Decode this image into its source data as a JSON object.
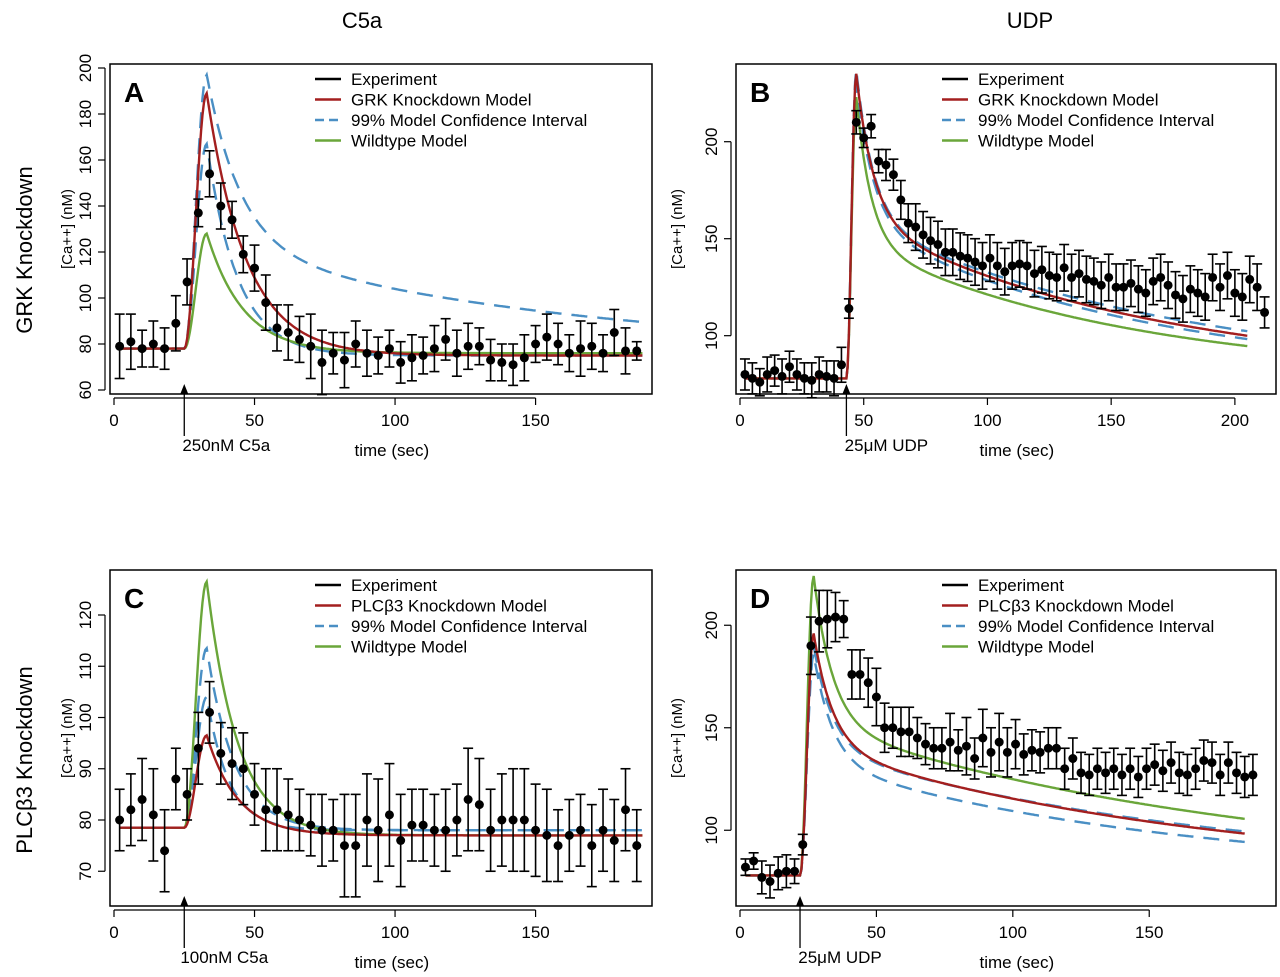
{
  "columns": [
    "C5a",
    "UDP"
  ],
  "rows": [
    "GRK Knockdown",
    "PLCβ3 Knockdown"
  ],
  "colors": {
    "experiment": "#000000",
    "knockdown": "#a31f1f",
    "ci": "#4a8fc4",
    "wildtype": "#6aa63a"
  },
  "chart_data": [
    {
      "type": "line",
      "panel": "A",
      "xlabel": "time (sec)",
      "ylabel": "[Ca++] (nM)",
      "xlim": [
        0,
        190
      ],
      "ylim": [
        60,
        200
      ],
      "xticks": [
        "0",
        "50",
        "100",
        "150"
      ],
      "yticks": [
        "60",
        "80",
        "100",
        "120",
        "140",
        "160",
        "180",
        "200"
      ],
      "stimulus": {
        "label": "250nM C5a",
        "time": 25
      },
      "legend": [
        "Experiment",
        "GRK  Knockdown Model",
        "99% Model Confidence Interval",
        "Wildtype Model"
      ],
      "series": [
        {
          "name": "Experiment",
          "x": [
            2,
            6,
            10,
            14,
            18,
            22,
            26,
            30,
            34,
            38,
            42,
            46,
            50,
            54,
            58,
            62,
            66,
            70,
            74,
            78,
            82,
            86,
            90,
            94,
            98,
            102,
            106,
            110,
            114,
            118,
            122,
            126,
            130,
            134,
            138,
            142,
            146,
            150,
            154,
            158,
            162,
            166,
            170,
            174,
            178,
            182,
            186
          ],
          "y": [
            79,
            81,
            78,
            80,
            78,
            89,
            107,
            137,
            154,
            140,
            134,
            119,
            113,
            98,
            87,
            85,
            82,
            79,
            72,
            76,
            73,
            80,
            76,
            75,
            78,
            72,
            74,
            75,
            78,
            82,
            76,
            79,
            79,
            73,
            72,
            71,
            74,
            80,
            83,
            80,
            76,
            78,
            79,
            76,
            85,
            77,
            77
          ],
          "err": [
            14,
            12,
            8,
            10,
            9,
            12,
            10,
            6,
            10,
            10,
            8,
            8,
            10,
            12,
            10,
            12,
            10,
            14,
            14,
            9,
            12,
            10,
            10,
            8,
            8,
            9,
            10,
            8,
            10,
            9,
            10,
            10,
            8,
            9,
            8,
            9,
            10,
            8,
            10,
            9,
            8,
            12,
            10,
            8,
            10,
            10,
            4
          ]
        },
        {
          "name": "GRK  Knockdown Model",
          "baseline": 78,
          "peak": 189,
          "onset": 25,
          "rise": 8,
          "tau": 14,
          "offset": 75,
          "tail": 0
        },
        {
          "name": "99% upper",
          "baseline": 78,
          "peak": 197,
          "onset": 25,
          "rise": 8,
          "tau": 12,
          "offset": 75,
          "tail": 48
        },
        {
          "name": "99% lower",
          "baseline": 78,
          "peak": 167,
          "onset": 25,
          "rise": 8,
          "tau": 11,
          "offset": 75,
          "tail": 0
        },
        {
          "name": "Wildtype Model",
          "baseline": 78,
          "peak": 128,
          "onset": 25,
          "rise": 8,
          "tau": 13,
          "offset": 76,
          "tail": 0
        }
      ]
    },
    {
      "type": "line",
      "panel": "B",
      "xlabel": "time (sec)",
      "ylabel": "[Ca++] (nM)",
      "xlim": [
        0,
        215
      ],
      "ylim": [
        72,
        238
      ],
      "xticks": [
        "0",
        "50",
        "100",
        "150",
        "200"
      ],
      "yticks": [
        "100",
        "150",
        "200"
      ],
      "stimulus": {
        "label": "25μM UDP",
        "time": 43
      },
      "legend": [
        "Experiment",
        "GRK Knockdown Model",
        "99% Model Confidence Interval",
        "Wildtype Model"
      ],
      "series": [
        {
          "name": "Experiment",
          "x": [
            2,
            5,
            8,
            11,
            14,
            17,
            20,
            23,
            26,
            29,
            32,
            35,
            38,
            41,
            44,
            47,
            50,
            53,
            56,
            59,
            62,
            65,
            68,
            71,
            74,
            77,
            80,
            83,
            86,
            89,
            92,
            95,
            98,
            101,
            104,
            107,
            110,
            113,
            116,
            119,
            122,
            125,
            128,
            131,
            134,
            137,
            140,
            143,
            146,
            149,
            152,
            155,
            158,
            161,
            164,
            167,
            170,
            173,
            176,
            179,
            182,
            185,
            188,
            191,
            194,
            197,
            200,
            203,
            206,
            209,
            212
          ],
          "y": [
            80,
            78,
            76,
            80,
            82,
            79,
            84,
            80,
            78,
            77,
            80,
            79,
            78,
            85,
            114,
            210,
            202,
            208,
            190,
            188,
            183,
            170,
            158,
            156,
            152,
            149,
            147,
            143,
            143,
            141,
            140,
            138,
            136,
            140,
            136,
            133,
            136,
            137,
            136,
            132,
            134,
            131,
            130,
            135,
            130,
            132,
            129,
            128,
            126,
            130,
            125,
            125,
            127,
            124,
            122,
            128,
            130,
            126,
            121,
            119,
            124,
            122,
            120,
            130,
            125,
            131,
            122,
            120,
            129,
            125,
            112
          ],
          "err": [
            8,
            8,
            7,
            9,
            8,
            9,
            8,
            8,
            8,
            9,
            9,
            8,
            9,
            9,
            5,
            6,
            5,
            6,
            6,
            8,
            8,
            10,
            10,
            12,
            12,
            12,
            12,
            12,
            12,
            12,
            12,
            12,
            12,
            12,
            12,
            12,
            12,
            12,
            12,
            12,
            12,
            12,
            12,
            12,
            12,
            12,
            12,
            12,
            12,
            12,
            12,
            12,
            12,
            12,
            12,
            12,
            12,
            12,
            12,
            12,
            12,
            12,
            12,
            12,
            12,
            12,
            12,
            12,
            12,
            12,
            8
          ]
        },
        {
          "name": "GRK Knockdown Model",
          "baseline": 78,
          "peak": 235,
          "onset": 43,
          "rise": 4,
          "fastAmp": 75,
          "tauFast": 7,
          "slowAmp": 82,
          "tauSlow": 120,
          "final": 78
        },
        {
          "name": "99% upper",
          "baseline": 78,
          "peak": 237,
          "onset": 43,
          "rise": 4,
          "fastAmp": 77,
          "tauFast": 7,
          "slowAmp": 82,
          "tauSlow": 130,
          "final": 78
        },
        {
          "name": "99% lower",
          "baseline": 78,
          "peak": 230,
          "onset": 43,
          "rise": 4,
          "fastAmp": 72,
          "tauFast": 7,
          "slowAmp": 80,
          "tauSlow": 115,
          "final": 78
        },
        {
          "name": "Wildtype Model",
          "baseline": 78,
          "peak": 223,
          "onset": 43,
          "rise": 4,
          "fastAmp": 75,
          "tauFast": 6,
          "slowAmp": 70,
          "tauSlow": 110,
          "final": 78
        }
      ]
    },
    {
      "type": "line",
      "panel": "C",
      "xlabel": "time (sec)",
      "ylabel": "[Ca++] (nM)",
      "xlim": [
        0,
        190
      ],
      "ylim": [
        64,
        128
      ],
      "xticks": [
        "0",
        "50",
        "100",
        "150"
      ],
      "yticks": [
        "70",
        "80",
        "90",
        "100",
        "110",
        "120"
      ],
      "stimulus": {
        "label": "100nM C5a",
        "time": 25
      },
      "legend": [
        "Experiment",
        "PLCβ3 Knockdown Model",
        "99% Model Confidence Interval",
        "Wildtype Model"
      ],
      "series": [
        {
          "name": "Experiment",
          "x": [
            2,
            6,
            10,
            14,
            18,
            22,
            26,
            30,
            34,
            38,
            42,
            46,
            50,
            54,
            58,
            62,
            66,
            70,
            74,
            78,
            82,
            86,
            90,
            94,
            98,
            102,
            106,
            110,
            114,
            118,
            122,
            126,
            130,
            134,
            138,
            142,
            146,
            150,
            154,
            158,
            162,
            166,
            170,
            174,
            178,
            182,
            186
          ],
          "y": [
            80,
            82,
            84,
            81,
            74,
            88,
            85,
            94,
            101,
            93,
            91,
            90,
            85,
            82,
            82,
            81,
            80,
            79,
            78,
            78,
            75,
            75,
            80,
            78,
            81,
            76,
            79,
            79,
            78,
            78,
            80,
            84,
            83,
            78,
            80,
            80,
            80,
            78,
            77,
            75,
            77,
            78,
            75,
            78,
            76,
            82,
            75
          ],
          "err": [
            6,
            7,
            8,
            9,
            8,
            6,
            5,
            7,
            6,
            6,
            7,
            7,
            6,
            8,
            8,
            7,
            6,
            6,
            7,
            6,
            10,
            10,
            9,
            10,
            10,
            9,
            7,
            7,
            7,
            8,
            7,
            10,
            9,
            8,
            9,
            10,
            10,
            9,
            9,
            7,
            7,
            7,
            8,
            8,
            8,
            8,
            7
          ]
        },
        {
          "name": "PLCβ3 Knockdown Model",
          "baseline": 78.5,
          "peak": 96.5,
          "onset": 25,
          "rise": 8,
          "tau": 11,
          "offset": 77,
          "tail": 0
        },
        {
          "name": "99% upper",
          "baseline": 78.5,
          "peak": 113.5,
          "onset": 25,
          "rise": 8,
          "tau": 10,
          "offset": 78,
          "tail": 0
        },
        {
          "name": "99% lower",
          "baseline": 78.5,
          "peak": 104,
          "onset": 25,
          "rise": 8,
          "tau": 8,
          "offset": 78,
          "tail": 0
        },
        {
          "name": "Wildtype Model",
          "baseline": 78.5,
          "peak": 126.5,
          "onset": 25,
          "rise": 8,
          "tau": 11,
          "offset": 77,
          "tail": 0
        }
      ]
    },
    {
      "type": "line",
      "panel": "D",
      "xlabel": "time (sec)",
      "ylabel": "[Ca++] (nM)",
      "xlim": [
        0,
        195
      ],
      "ylim": [
        65,
        225
      ],
      "xticks": [
        "0",
        "50",
        "100",
        "150"
      ],
      "yticks": [
        "100",
        "150",
        "200"
      ],
      "stimulus": {
        "label": "25μM UDP",
        "time": 22
      },
      "legend": [
        "Experiment",
        "PLCβ3 Knockdown Model",
        "99% Model Confidence Interval",
        "Wildtype Model"
      ],
      "series": [
        {
          "name": "Experiment",
          "x": [
            2,
            5,
            8,
            11,
            14,
            17,
            20,
            23,
            26,
            29,
            32,
            35,
            38,
            41,
            44,
            47,
            50,
            53,
            56,
            59,
            62,
            65,
            68,
            71,
            74,
            77,
            80,
            83,
            86,
            89,
            92,
            95,
            98,
            101,
            104,
            107,
            110,
            113,
            116,
            119,
            122,
            125,
            128,
            131,
            134,
            137,
            140,
            143,
            146,
            149,
            152,
            155,
            158,
            161,
            164,
            167,
            170,
            173,
            176,
            179,
            182,
            185,
            188
          ],
          "y": [
            82,
            85,
            77,
            75,
            79,
            80,
            80,
            93,
            190,
            202,
            203,
            204,
            203,
            176,
            176,
            172,
            165,
            150,
            150,
            148,
            148,
            145,
            142,
            140,
            140,
            143,
            139,
            141,
            135,
            145,
            138,
            143,
            138,
            142,
            137,
            139,
            138,
            140,
            140,
            130,
            135,
            128,
            127,
            130,
            128,
            130,
            127,
            130,
            126,
            130,
            132,
            129,
            133,
            128,
            127,
            130,
            134,
            133,
            127,
            133,
            128,
            126,
            127
          ],
          "err": [
            4,
            4,
            8,
            8,
            8,
            8,
            6,
            5,
            14,
            15,
            14,
            12,
            9,
            12,
            12,
            12,
            14,
            12,
            10,
            12,
            12,
            10,
            10,
            10,
            10,
            14,
            10,
            14,
            10,
            14,
            12,
            14,
            12,
            12,
            10,
            10,
            10,
            10,
            10,
            10,
            10,
            10,
            10,
            10,
            10,
            10,
            10,
            10,
            10,
            10,
            10,
            10,
            10,
            10,
            10,
            10,
            10,
            10,
            10,
            10,
            10,
            10,
            10
          ]
        },
        {
          "name": "PLCβ3 Knockdown Model",
          "baseline": 78,
          "peak": 196,
          "onset": 22,
          "rise": 5,
          "fastAmp": 55,
          "tauFast": 7,
          "slowAmp": 70,
          "tauSlow": 140,
          "final": 78
        },
        {
          "name": "99% upper",
          "baseline": 78,
          "peak": 190,
          "onset": 22,
          "rise": 5,
          "fastAmp": 50,
          "tauFast": 7,
          "slowAmp": 70,
          "tauSlow": 140,
          "final": 80
        },
        {
          "name": "99% lower",
          "baseline": 78,
          "peak": 186,
          "onset": 22,
          "rise": 5,
          "fastAmp": 53,
          "tauFast": 7,
          "slowAmp": 65,
          "tauSlow": 130,
          "final": 78
        },
        {
          "name": "Wildtype Model",
          "baseline": 78,
          "peak": 224,
          "onset": 22,
          "rise": 5,
          "fastAmp": 72,
          "tauFast": 7,
          "slowAmp": 75,
          "tauSlow": 160,
          "final": 78
        }
      ]
    }
  ]
}
